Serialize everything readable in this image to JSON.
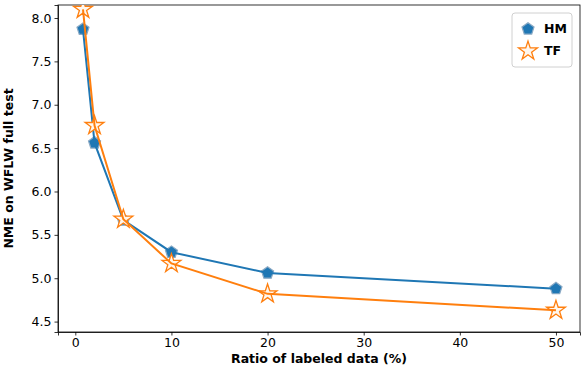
{
  "chart_data": {
    "type": "line",
    "x_label": "Ratio of labeled data (%)",
    "y_label": "NME on WFLW full test",
    "x": [
      0.8,
      2,
      5,
      10,
      20,
      50
    ],
    "series": [
      {
        "name": "HM",
        "color": "#1f77b4",
        "marker": "pentagon",
        "values": [
          7.87,
          6.56,
          5.67,
          5.3,
          5.06,
          4.88
        ]
      },
      {
        "name": "TF",
        "color": "#ff7f0e",
        "marker": "star",
        "values": [
          8.1,
          6.76,
          5.68,
          5.17,
          4.82,
          4.63
        ]
      }
    ],
    "xlim": [
      -1.8,
      52.5
    ],
    "xticks": [
      0,
      10,
      20,
      30,
      40,
      50
    ],
    "ylim": [
      4.38,
      8.15
    ],
    "yticks": [
      4.5,
      {
        "value": 5,
        "label": "5.0"
      },
      5.5,
      {
        "value": 6,
        "label": "6.0"
      },
      6.5,
      {
        "value": 7,
        "label": "7.0"
      },
      7.5,
      {
        "value": 8,
        "label": "8.0"
      }
    ],
    "grid": false,
    "legend": "upper right"
  }
}
